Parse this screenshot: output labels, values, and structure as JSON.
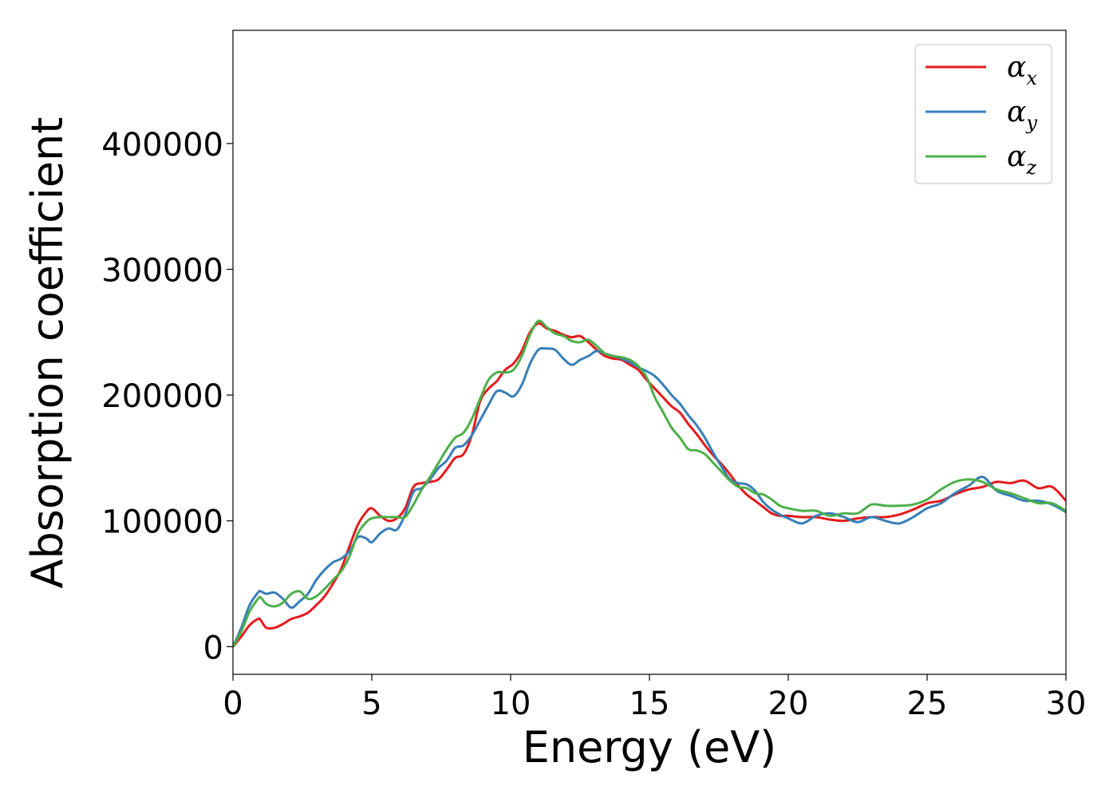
{
  "chart_data": {
    "type": "line",
    "title": "",
    "xlabel": "Energy (eV)",
    "ylabel": "Absorption coefficient",
    "xlim": [
      0,
      30
    ],
    "ylim": [
      -22000,
      490000
    ],
    "xticks": [
      0,
      5,
      10,
      15,
      20,
      25,
      30
    ],
    "xtick_labels": [
      "0",
      "5",
      "10",
      "15",
      "20",
      "25",
      "30"
    ],
    "yticks": [
      0,
      100000,
      200000,
      300000,
      400000
    ],
    "ytick_labels": [
      "0",
      "100000",
      "200000",
      "300000",
      "400000"
    ],
    "grid": false,
    "legend_position": "top-right",
    "series": [
      {
        "name": "α_x",
        "name_main": "α",
        "name_sub": "x",
        "color": "#e41a1c",
        "x": [
          0,
          0.3,
          0.6,
          0.9,
          1.0,
          1.2,
          1.5,
          1.8,
          2.1,
          2.4,
          2.7,
          3.0,
          3.3,
          3.6,
          3.9,
          4.2,
          4.5,
          4.8,
          5.0,
          5.3,
          5.6,
          5.9,
          6.2,
          6.5,
          6.8,
          7.1,
          7.4,
          7.7,
          8.0,
          8.3,
          8.6,
          8.9,
          9.2,
          9.5,
          9.8,
          10.1,
          10.4,
          10.7,
          11.0,
          11.3,
          11.6,
          11.9,
          12.2,
          12.5,
          12.8,
          13.1,
          13.4,
          13.7,
          14.0,
          14.3,
          14.6,
          14.9,
          15.2,
          15.5,
          15.8,
          16.1,
          16.4,
          16.7,
          17.0,
          17.3,
          17.6,
          17.9,
          18.2,
          18.5,
          18.8,
          19.1,
          19.4,
          19.7,
          20.0,
          20.5,
          21.0,
          21.5,
          22.0,
          22.5,
          23.0,
          23.5,
          24.0,
          24.5,
          25.0,
          25.5,
          26.0,
          26.5,
          27.0,
          27.5,
          28.0,
          28.5,
          29.0,
          29.5,
          30.0
        ],
        "y": [
          0,
          8000,
          17000,
          22000,
          21000,
          15000,
          15000,
          18000,
          22000,
          24000,
          27000,
          33000,
          40000,
          50000,
          62000,
          80000,
          97000,
          107000,
          110000,
          104000,
          100000,
          102000,
          110000,
          127000,
          130000,
          131000,
          133000,
          141000,
          150000,
          153000,
          168000,
          195000,
          205000,
          211000,
          220000,
          225000,
          235000,
          250000,
          257000,
          253000,
          251000,
          248000,
          246000,
          247000,
          242000,
          236000,
          231000,
          229000,
          228000,
          224000,
          220000,
          212000,
          205000,
          198000,
          191000,
          186000,
          177000,
          169000,
          160000,
          152000,
          145000,
          137000,
          128000,
          121000,
          116000,
          111000,
          106000,
          104000,
          104000,
          103000,
          103000,
          101000,
          100000,
          102000,
          103000,
          103000,
          105000,
          109000,
          114000,
          116000,
          121000,
          125000,
          127000,
          131000,
          130000,
          132000,
          126000,
          127000,
          116000
        ]
      },
      {
        "name": "α_y",
        "name_main": "α",
        "name_sub": "y",
        "color": "#377eb8",
        "x": [
          0,
          0.3,
          0.6,
          0.9,
          1.0,
          1.2,
          1.5,
          1.8,
          2.1,
          2.4,
          2.7,
          3.0,
          3.3,
          3.6,
          3.9,
          4.2,
          4.5,
          4.8,
          5.0,
          5.3,
          5.6,
          5.9,
          6.2,
          6.5,
          6.8,
          7.1,
          7.4,
          7.7,
          8.0,
          8.3,
          8.6,
          8.9,
          9.2,
          9.5,
          9.8,
          10.1,
          10.4,
          10.7,
          11.0,
          11.3,
          11.6,
          11.9,
          12.2,
          12.5,
          12.8,
          13.1,
          13.4,
          13.7,
          14.0,
          14.3,
          14.6,
          14.9,
          15.2,
          15.5,
          15.8,
          16.1,
          16.4,
          16.7,
          17.0,
          17.3,
          17.6,
          17.9,
          18.2,
          18.5,
          18.8,
          19.1,
          19.4,
          19.7,
          20.0,
          20.5,
          21.0,
          21.5,
          22.0,
          22.5,
          23.0,
          23.5,
          24.0,
          24.5,
          25.0,
          25.5,
          26.0,
          26.5,
          27.0,
          27.5,
          28.0,
          28.5,
          29.0,
          29.5,
          30.0
        ],
        "y": [
          0,
          15000,
          33000,
          43000,
          44000,
          42000,
          43000,
          38000,
          31000,
          36000,
          42000,
          53000,
          61000,
          67000,
          70000,
          76000,
          87000,
          86000,
          83000,
          90000,
          94000,
          93000,
          105000,
          123000,
          126000,
          133000,
          142000,
          148000,
          158000,
          160000,
          168000,
          180000,
          192000,
          203000,
          202000,
          199000,
          208000,
          225000,
          236000,
          237000,
          236000,
          229000,
          224000,
          228000,
          231000,
          235000,
          233000,
          231000,
          229000,
          226000,
          222000,
          219000,
          215000,
          208000,
          200000,
          193000,
          184000,
          176000,
          166000,
          154000,
          143000,
          133000,
          130000,
          129000,
          124000,
          115000,
          109000,
          105000,
          102000,
          98000,
          104000,
          106000,
          103000,
          99000,
          103000,
          100000,
          98000,
          103000,
          110000,
          114000,
          122000,
          128000,
          135000,
          124000,
          120000,
          116000,
          116000,
          113000,
          107000
        ]
      },
      {
        "name": "α_z",
        "name_main": "α",
        "name_sub": "z",
        "color": "#4daf4a",
        "x": [
          0,
          0.3,
          0.6,
          0.9,
          1.0,
          1.2,
          1.5,
          1.8,
          2.1,
          2.4,
          2.7,
          3.0,
          3.3,
          3.6,
          3.9,
          4.2,
          4.5,
          4.8,
          5.0,
          5.3,
          5.6,
          5.9,
          6.2,
          6.5,
          6.8,
          7.1,
          7.4,
          7.7,
          8.0,
          8.3,
          8.6,
          8.9,
          9.2,
          9.5,
          9.8,
          10.1,
          10.4,
          10.7,
          11.0,
          11.3,
          11.6,
          11.9,
          12.2,
          12.5,
          12.8,
          13.1,
          13.4,
          13.7,
          14.0,
          14.3,
          14.6,
          14.9,
          15.2,
          15.5,
          15.8,
          16.1,
          16.4,
          16.7,
          17.0,
          17.3,
          17.6,
          17.9,
          18.2,
          18.5,
          18.8,
          19.1,
          19.4,
          19.7,
          20.0,
          20.5,
          21.0,
          21.5,
          22.0,
          22.5,
          23.0,
          23.5,
          24.0,
          24.5,
          25.0,
          25.5,
          26.0,
          26.5,
          27.0,
          27.5,
          28.0,
          28.5,
          29.0,
          29.5,
          30.0
        ],
        "y": [
          0,
          12000,
          28000,
          38000,
          39000,
          34000,
          32000,
          35000,
          42000,
          44000,
          38000,
          40000,
          46000,
          53000,
          60000,
          72000,
          90000,
          99000,
          102000,
          103000,
          103000,
          103000,
          103000,
          113000,
          125000,
          135000,
          146000,
          157000,
          166000,
          170000,
          181000,
          197000,
          212000,
          218000,
          218000,
          220000,
          231000,
          248000,
          259000,
          254000,
          249000,
          247000,
          243000,
          242000,
          244000,
          239000,
          233000,
          231000,
          230000,
          228000,
          223000,
          214000,
          198000,
          186000,
          174000,
          166000,
          157000,
          156000,
          153000,
          146000,
          139000,
          132000,
          127000,
          126000,
          122000,
          121000,
          117000,
          112000,
          110000,
          108000,
          108000,
          104000,
          106000,
          106000,
          113000,
          112000,
          112000,
          113000,
          117000,
          125000,
          131000,
          133000,
          131000,
          125000,
          122000,
          118000,
          114000,
          114000,
          108000
        ]
      }
    ]
  }
}
